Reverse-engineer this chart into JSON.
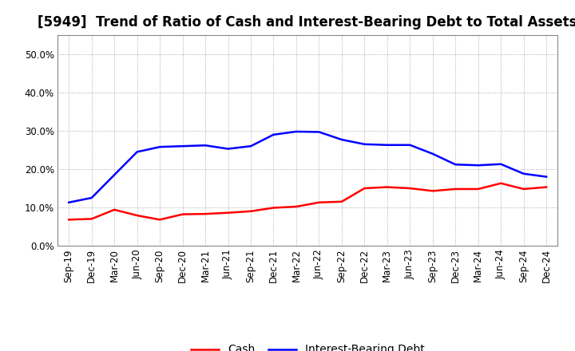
{
  "title": "[5949]  Trend of Ratio of Cash and Interest-Bearing Debt to Total Assets",
  "labels": [
    "Sep-19",
    "Dec-19",
    "Mar-20",
    "Jun-20",
    "Sep-20",
    "Dec-20",
    "Mar-21",
    "Jun-21",
    "Sep-21",
    "Dec-21",
    "Mar-22",
    "Jun-22",
    "Sep-22",
    "Dec-22",
    "Mar-23",
    "Jun-23",
    "Sep-23",
    "Dec-23",
    "Mar-24",
    "Jun-24",
    "Sep-24",
    "Dec-24"
  ],
  "cash": [
    0.068,
    0.07,
    0.094,
    0.079,
    0.068,
    0.082,
    0.083,
    0.086,
    0.09,
    0.099,
    0.102,
    0.113,
    0.115,
    0.15,
    0.153,
    0.15,
    0.143,
    0.148,
    0.148,
    0.163,
    0.148,
    0.153
  ],
  "ibd": [
    0.113,
    0.125,
    0.185,
    0.245,
    0.258,
    0.26,
    0.262,
    0.253,
    0.26,
    0.29,
    0.298,
    0.297,
    0.277,
    0.265,
    0.263,
    0.263,
    0.24,
    0.212,
    0.21,
    0.213,
    0.188,
    0.18
  ],
  "cash_color": "#ff0000",
  "ibd_color": "#0000ff",
  "background_color": "#ffffff",
  "plot_bg_color": "#ffffff",
  "ylim": [
    0.0,
    0.55
  ],
  "yticks": [
    0.0,
    0.1,
    0.2,
    0.3,
    0.4,
    0.5
  ],
  "legend_cash": "Cash",
  "legend_ibd": "Interest-Bearing Debt",
  "title_fontsize": 12,
  "tick_fontsize": 8.5,
  "legend_fontsize": 10,
  "linewidth": 1.8
}
